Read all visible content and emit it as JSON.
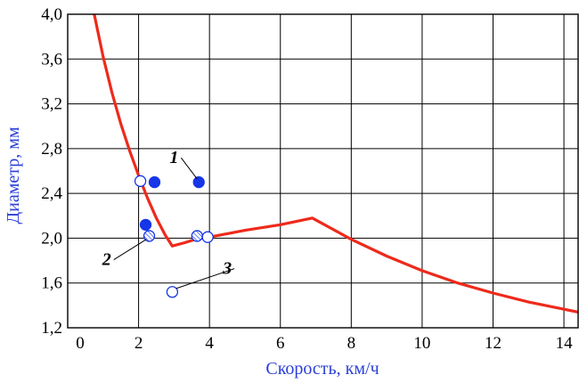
{
  "chart_data": {
    "type": "scatter",
    "title": "",
    "xlabel": "Скорость, км/ч",
    "ylabel": "Диаметр, мм",
    "xlim": [
      0,
      14.4
    ],
    "ylim": [
      1.2,
      4.0
    ],
    "x_ticks": [
      "0",
      "2",
      "4",
      "6",
      "8",
      "10",
      "12",
      "14"
    ],
    "y_ticks": [
      "1,2",
      "1,6",
      "2,0",
      "2,4",
      "2,8",
      "3,2",
      "3,6",
      "4,0"
    ],
    "grid": true,
    "series": [
      {
        "type": "line",
        "points": [
          [
            0.75,
            4.0
          ],
          [
            1.0,
            3.62
          ],
          [
            1.25,
            3.3
          ],
          [
            1.5,
            3.02
          ],
          [
            1.75,
            2.78
          ],
          [
            2.0,
            2.56
          ],
          [
            2.25,
            2.36
          ],
          [
            2.5,
            2.18
          ],
          [
            2.75,
            2.03
          ],
          [
            2.95,
            1.93
          ],
          [
            3.3,
            1.96
          ],
          [
            3.6,
            1.99
          ],
          [
            4.0,
            2.01
          ],
          [
            5.0,
            2.07
          ],
          [
            6.0,
            2.12
          ],
          [
            6.9,
            2.18
          ],
          [
            8.0,
            1.99
          ],
          [
            9.0,
            1.84
          ],
          [
            10.0,
            1.71
          ],
          [
            11.0,
            1.6
          ],
          [
            12.0,
            1.51
          ],
          [
            13.0,
            1.43
          ],
          [
            14.4,
            1.34
          ]
        ]
      },
      {
        "marker": "filled",
        "points": [
          [
            2.2,
            2.12
          ],
          [
            2.45,
            2.5
          ],
          [
            3.7,
            2.5
          ]
        ]
      },
      {
        "marker": "open",
        "points": [
          [
            2.05,
            2.51
          ],
          [
            3.95,
            2.01
          ],
          [
            2.95,
            1.52
          ]
        ]
      },
      {
        "marker": "hatched",
        "points": [
          [
            2.3,
            2.02
          ],
          [
            3.65,
            2.02
          ]
        ]
      }
    ],
    "annotations": [
      {
        "text": "1",
        "x": 3.0,
        "y": 2.67,
        "target": [
          3.65,
          2.53
        ]
      },
      {
        "text": "2",
        "x": 1.1,
        "y": 1.76,
        "target": [
          2.22,
          1.99
        ]
      },
      {
        "text": "3",
        "x": 4.5,
        "y": 1.68,
        "target": [
          3.05,
          1.55
        ]
      }
    ],
    "colors": {
      "curve": "#ee2a1b",
      "marker_fill": "#1636e8",
      "marker_stroke": "#1636e8",
      "axis_title": "#2b3fd9",
      "grid": "#000000"
    }
  }
}
